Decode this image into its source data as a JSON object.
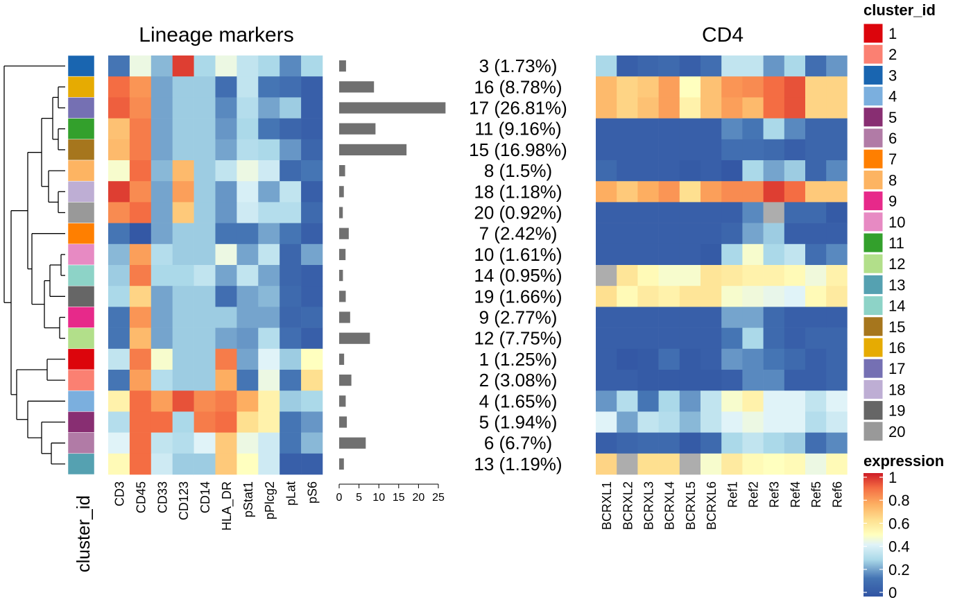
{
  "chart_data": {
    "type": "heatmap",
    "panels": {
      "left_title": "Lineage markers",
      "right_title": "CD4",
      "annotation_label": "cluster_id"
    },
    "rows": [
      {
        "cluster": "3",
        "label": "3 (1.73%)",
        "pct": 1.73,
        "lineage": [
          0.15,
          0.45,
          0.25,
          0.95,
          0.3,
          0.45,
          0.35,
          0.3,
          0.18,
          0.3
        ],
        "cd4": [
          0.3,
          0.05,
          0.08,
          0.1,
          0.05,
          0.12,
          0.35,
          0.35,
          0.2,
          0.3,
          0.12,
          0.2
        ]
      },
      {
        "cluster": "16",
        "label": "16 (8.78%)",
        "pct": 8.78,
        "lineage": [
          0.88,
          0.8,
          0.22,
          0.28,
          0.28,
          0.12,
          0.35,
          0.15,
          0.12,
          0.05
        ],
        "cd4": [
          0.72,
          0.65,
          0.68,
          0.78,
          0.5,
          0.7,
          0.8,
          0.82,
          0.88,
          0.92,
          0.65,
          0.65
        ]
      },
      {
        "cluster": "17",
        "label": "17 (26.81%)",
        "pct": 26.81,
        "lineage": [
          0.9,
          0.82,
          0.22,
          0.28,
          0.28,
          0.18,
          0.32,
          0.22,
          0.28,
          0.05
        ],
        "cd4": [
          0.72,
          0.65,
          0.7,
          0.78,
          0.55,
          0.7,
          0.78,
          0.72,
          0.88,
          0.92,
          0.65,
          0.65
        ]
      },
      {
        "cluster": "11",
        "label": "11 (9.16%)",
        "pct": 9.16,
        "lineage": [
          0.7,
          0.85,
          0.22,
          0.28,
          0.28,
          0.2,
          0.3,
          0.15,
          0.08,
          0.05
        ],
        "cd4": [
          0.05,
          0.05,
          0.05,
          0.05,
          0.05,
          0.05,
          0.18,
          0.15,
          0.3,
          0.18,
          0.08,
          0.08
        ]
      },
      {
        "cluster": "15",
        "label": "15 (16.98%)",
        "pct": 16.98,
        "lineage": [
          0.72,
          0.85,
          0.22,
          0.28,
          0.28,
          0.22,
          0.32,
          0.3,
          0.2,
          0.08
        ],
        "cd4": [
          0.05,
          0.05,
          0.05,
          0.05,
          0.05,
          0.05,
          0.12,
          0.12,
          0.1,
          0.05,
          0.08,
          0.08
        ]
      },
      {
        "cluster": "8",
        "label": "8 (1.5%)",
        "pct": 1.5,
        "lineage": [
          0.48,
          0.88,
          0.25,
          0.72,
          0.28,
          0.35,
          0.45,
          0.38,
          0.1,
          0.15
        ],
        "cd4": [
          0.1,
          0.05,
          0.05,
          0.05,
          0.03,
          0.05,
          0.02,
          0.3,
          0.22,
          0.28,
          0.08,
          0.18
        ]
      },
      {
        "cluster": "18",
        "label": "18 (1.18%)",
        "pct": 1.18,
        "lineage": [
          0.95,
          0.82,
          0.22,
          0.78,
          0.28,
          0.2,
          0.4,
          0.22,
          0.35,
          0.05
        ],
        "cd4": [
          0.75,
          0.68,
          0.75,
          0.8,
          0.62,
          0.78,
          0.82,
          0.82,
          0.95,
          0.88,
          0.68,
          0.68
        ]
      },
      {
        "cluster": "20",
        "label": "20 (0.92%)",
        "pct": 0.92,
        "lineage": [
          0.82,
          0.88,
          0.22,
          0.68,
          0.28,
          0.2,
          0.38,
          0.32,
          0.32,
          0.1
        ],
        "cd4": [
          0.05,
          0.05,
          0.05,
          0.05,
          0.05,
          0.05,
          0.05,
          0.18,
          null,
          0.1,
          0.1,
          0.03
        ]
      },
      {
        "cluster": "7",
        "label": "7 (2.42%)",
        "pct": 2.42,
        "lineage": [
          0.15,
          0.02,
          0.22,
          0.28,
          0.28,
          0.15,
          0.15,
          0.22,
          0.15,
          0.05
        ],
        "cd4": [
          0.05,
          0.05,
          0.05,
          0.05,
          0.05,
          0.05,
          0.08,
          0.22,
          0.28,
          0.05,
          0.05,
          0.05
        ]
      },
      {
        "cluster": "10",
        "label": "10 (1.61%)",
        "pct": 1.61,
        "lineage": [
          0.25,
          0.78,
          0.32,
          0.28,
          0.28,
          0.45,
          0.22,
          0.35,
          0.08,
          0.22
        ],
        "cd4": [
          0.05,
          0.05,
          0.05,
          0.05,
          0.05,
          0.03,
          0.3,
          0.48,
          0.3,
          0.35,
          0.12,
          0.18
        ]
      },
      {
        "cluster": "14",
        "label": "14 (0.95%)",
        "pct": 0.95,
        "lineage": [
          0.28,
          0.85,
          0.3,
          0.3,
          0.35,
          0.22,
          0.35,
          0.22,
          0.08,
          0.05
        ],
        "cd4": [
          null,
          0.6,
          0.52,
          0.48,
          0.48,
          0.6,
          0.58,
          0.55,
          0.55,
          0.52,
          0.46,
          0.55
        ]
      },
      {
        "cluster": "19",
        "label": "19 (1.66%)",
        "pct": 1.66,
        "lineage": [
          0.3,
          0.65,
          0.22,
          0.28,
          0.28,
          0.12,
          0.22,
          0.25,
          0.1,
          0.05
        ],
        "cd4": [
          0.62,
          0.52,
          0.58,
          0.55,
          0.6,
          0.6,
          0.48,
          0.46,
          0.44,
          0.42,
          0.52,
          0.58
        ]
      },
      {
        "cluster": "9",
        "label": "9 (2.77%)",
        "pct": 2.77,
        "lineage": [
          0.15,
          0.8,
          0.22,
          0.28,
          0.28,
          0.28,
          0.22,
          0.22,
          0.08,
          0.1
        ],
        "cd4": [
          0.05,
          0.05,
          0.05,
          0.05,
          0.05,
          0.05,
          0.22,
          0.22,
          0.1,
          0.05,
          0.05,
          0.05
        ]
      },
      {
        "cluster": "12",
        "label": "12 (7.75%)",
        "pct": 7.75,
        "lineage": [
          0.15,
          0.72,
          0.22,
          0.28,
          0.28,
          0.22,
          0.2,
          0.32,
          0.12,
          0.05
        ],
        "cd4": [
          0.05,
          0.05,
          0.05,
          0.05,
          0.05,
          0.05,
          0.15,
          0.3,
          0.1,
          0.05,
          0.08,
          0.08
        ]
      },
      {
        "cluster": "1",
        "label": "1 (1.25%)",
        "pct": 1.25,
        "lineage": [
          0.35,
          0.85,
          0.48,
          0.28,
          0.28,
          0.85,
          0.22,
          0.42,
          0.28,
          0.5
        ],
        "cd4": [
          0.05,
          0.02,
          0.03,
          0.12,
          0.03,
          0.05,
          0.2,
          0.18,
          0.15,
          0.1,
          0.05,
          0.08
        ]
      },
      {
        "cluster": "2",
        "label": "2 (3.08%)",
        "pct": 3.08,
        "lineage": [
          0.15,
          0.78,
          0.32,
          0.28,
          0.28,
          0.75,
          0.15,
          0.45,
          0.15,
          0.62
        ],
        "cd4": [
          0.05,
          0.05,
          0.03,
          0.03,
          0.03,
          0.03,
          0.05,
          0.18,
          0.18,
          0.05,
          0.05,
          0.08
        ]
      },
      {
        "cluster": "4",
        "label": "4 (1.65%)",
        "pct": 1.65,
        "lineage": [
          0.55,
          0.88,
          0.78,
          0.92,
          0.82,
          0.85,
          0.75,
          0.55,
          0.28,
          0.3
        ],
        "cd4": [
          0.2,
          0.32,
          0.15,
          0.3,
          0.2,
          0.35,
          0.48,
          0.55,
          0.42,
          0.42,
          0.35,
          0.42
        ]
      },
      {
        "cluster": "5",
        "label": "5 (1.94%)",
        "pct": 1.94,
        "lineage": [
          0.32,
          0.88,
          0.88,
          0.3,
          0.85,
          0.88,
          0.62,
          0.55,
          0.15,
          0.2
        ],
        "cd4": [
          0.42,
          0.22,
          0.35,
          0.32,
          0.25,
          0.35,
          0.42,
          0.45,
          0.42,
          0.42,
          0.32,
          0.38
        ]
      },
      {
        "cluster": "6",
        "label": "6 (6.7%)",
        "pct": 6.7,
        "lineage": [
          0.42,
          0.88,
          0.35,
          0.32,
          0.42,
          0.68,
          0.45,
          0.38,
          0.15,
          0.25
        ],
        "cd4": [
          0.05,
          0.08,
          0.1,
          0.1,
          0.03,
          0.1,
          0.3,
          0.35,
          0.3,
          0.28,
          0.12,
          0.18
        ]
      },
      {
        "cluster": "13",
        "label": "13 (1.19%)",
        "pct": 1.19,
        "lineage": [
          0.52,
          0.88,
          0.38,
          0.28,
          0.28,
          0.68,
          0.5,
          0.38,
          0.05,
          0.05
        ],
        "cd4": [
          0.65,
          null,
          0.62,
          0.62,
          null,
          0.48,
          0.58,
          0.52,
          0.5,
          0.52,
          0.45,
          0.52
        ]
      }
    ],
    "lineage_columns": [
      "CD3",
      "CD45",
      "CD33",
      "CD123",
      "CD14",
      "HLA_DR",
      "pStat1",
      "pPlcg2",
      "pLat",
      "pS6"
    ],
    "cd4_columns": [
      "BCRXL1",
      "BCRXL2",
      "BCRXL3",
      "BCRXL4",
      "BCRXL5",
      "BCRXL6",
      "Ref1",
      "Ref2",
      "Ref3",
      "Ref4",
      "Ref5",
      "Ref6"
    ],
    "bar_axis": {
      "ticks": [
        "0",
        "5",
        "10",
        "15",
        "20",
        "25"
      ],
      "range": [
        0,
        25
      ]
    },
    "na_color": "#ADADAD",
    "cluster_legend": {
      "title": "cluster_id",
      "entries": [
        {
          "label": "1",
          "color": "#DC050C"
        },
        {
          "label": "2",
          "color": "#FB8072"
        },
        {
          "label": "3",
          "color": "#1965B0"
        },
        {
          "label": "4",
          "color": "#7BAFDE"
        },
        {
          "label": "5",
          "color": "#882E72"
        },
        {
          "label": "6",
          "color": "#B17BA6"
        },
        {
          "label": "7",
          "color": "#FF7F00"
        },
        {
          "label": "8",
          "color": "#FDB462"
        },
        {
          "label": "9",
          "color": "#E7298A"
        },
        {
          "label": "10",
          "color": "#E78AC3"
        },
        {
          "label": "11",
          "color": "#33A02C"
        },
        {
          "label": "12",
          "color": "#B2DF8A"
        },
        {
          "label": "13",
          "color": "#55A1B1"
        },
        {
          "label": "14",
          "color": "#8DD3C7"
        },
        {
          "label": "15",
          "color": "#A6761D"
        },
        {
          "label": "16",
          "color": "#E6AB02"
        },
        {
          "label": "17",
          "color": "#7570B3"
        },
        {
          "label": "18",
          "color": "#BEAED4"
        },
        {
          "label": "19",
          "color": "#666666"
        },
        {
          "label": "20",
          "color": "#999999"
        }
      ]
    },
    "expression_legend": {
      "title": "expression",
      "ticks": [
        "1",
        "0.8",
        "0.6",
        "0.4",
        "0.2",
        "0"
      ]
    },
    "dendrogram_order": [
      "3",
      "16",
      "17",
      "11",
      "15",
      "8",
      "18",
      "20",
      "7",
      "10",
      "14",
      "19",
      "9",
      "12",
      "1",
      "2",
      "4",
      "5",
      "6",
      "13"
    ]
  }
}
